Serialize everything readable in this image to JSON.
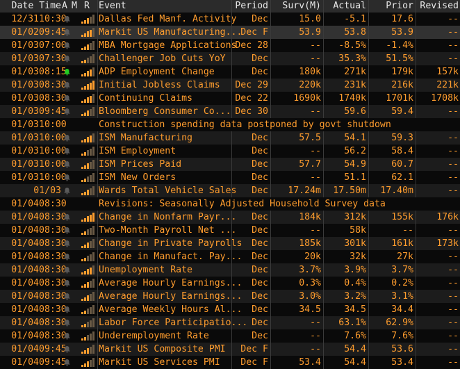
{
  "header": {
    "date_time": "Date Time",
    "a": "A",
    "m": "M",
    "r": "R",
    "event": "Event",
    "period": "Period",
    "surv": "Surv(M)",
    "actual": "Actual",
    "prior": "Prior",
    "revised": "Revised"
  },
  "colors": {
    "text": "#ff9d2e",
    "header_text": "#e8e8e8",
    "bar_on": "#ff9d2e",
    "bar_off": "#6a5a45",
    "bell_normal": "#5a5a5a",
    "bell_active": "#22cc22"
  },
  "rows": [
    {
      "date": "12/31",
      "time": "10:30",
      "bell": "normal",
      "relevance": 3,
      "event": "Dallas Fed Manf. Activity",
      "period": "Dec",
      "surv": "15.0",
      "actual": "-5.1",
      "prior": "17.6",
      "revised": "--"
    },
    {
      "date": "01/02",
      "time": "09:45",
      "bell": "normal",
      "relevance": 4,
      "event": "Markit US Manufacturing...",
      "period": "Dec F",
      "surv": "53.9",
      "actual": "53.8",
      "prior": "53.9",
      "revised": "--"
    },
    {
      "date": "01/03",
      "time": "07:00",
      "bell": "normal",
      "relevance": 3,
      "event": "MBA Mortgage Applications",
      "period": "Dec 28",
      "surv": "--",
      "actual": "-8.5%",
      "prior": "-1.4%",
      "revised": "--"
    },
    {
      "date": "01/03",
      "time": "07:30",
      "bell": "normal",
      "relevance": 2,
      "event": "Challenger Job Cuts YoY",
      "period": "Dec",
      "surv": "--",
      "actual": "35.3%",
      "prior": "51.5%",
      "revised": "--"
    },
    {
      "date": "01/03",
      "time": "08:15",
      "bell": "active",
      "relevance": 4,
      "event": "ADP Employment Change",
      "period": "Dec",
      "surv": "180k",
      "actual": "271k",
      "prior": "179k",
      "revised": "157k"
    },
    {
      "date": "01/03",
      "time": "08:30",
      "bell": "normal",
      "relevance": 5,
      "event": "Initial Jobless Claims",
      "period": "Dec 29",
      "surv": "220k",
      "actual": "231k",
      "prior": "216k",
      "revised": "221k"
    },
    {
      "date": "01/03",
      "time": "08:30",
      "bell": "normal",
      "relevance": 4,
      "event": "Continuing Claims",
      "period": "Dec 22",
      "surv": "1690k",
      "actual": "1740k",
      "prior": "1701k",
      "revised": "1708k"
    },
    {
      "date": "01/03",
      "time": "09:45",
      "bell": "normal",
      "relevance": 3,
      "event": "Bloomberg Consumer Co...",
      "period": "Dec 30",
      "surv": "--",
      "actual": "59.6",
      "prior": "59.4",
      "revised": "--"
    },
    {
      "date": "01/03",
      "time": "10:00",
      "full_note": "Construction spending data postponed by govt shutdown"
    },
    {
      "date": "01/03",
      "time": "10:00",
      "bell": "normal",
      "relevance": 4,
      "event": "ISM Manufacturing",
      "period": "Dec",
      "surv": "57.5",
      "actual": "54.1",
      "prior": "59.3",
      "revised": "--"
    },
    {
      "date": "01/03",
      "time": "10:00",
      "bell": "normal",
      "relevance": 2,
      "event": "ISM Employment",
      "period": "Dec",
      "surv": "--",
      "actual": "56.2",
      "prior": "58.4",
      "revised": "--"
    },
    {
      "date": "01/03",
      "time": "10:00",
      "bell": "normal",
      "relevance": 3,
      "event": "ISM Prices Paid",
      "period": "Dec",
      "surv": "57.7",
      "actual": "54.9",
      "prior": "60.7",
      "revised": "--"
    },
    {
      "date": "01/03",
      "time": "10:00",
      "bell": "normal",
      "relevance": 2,
      "event": "ISM New Orders",
      "period": "Dec",
      "surv": "--",
      "actual": "51.1",
      "prior": "62.1",
      "revised": "--"
    },
    {
      "date": "",
      "time": "01/03",
      "bell": "normal",
      "relevance": 3,
      "event": "Wards Total Vehicle Sales",
      "period": "Dec",
      "surv": "17.24m",
      "actual": "17.50m",
      "prior": "17.40m",
      "revised": "--"
    },
    {
      "date": "01/04",
      "time": "08:30",
      "full_note": "Revisions: Seasonally Adjusted Household Survey data"
    },
    {
      "date": "01/04",
      "time": "08:30",
      "bell": "normal",
      "relevance": 5,
      "event": "Change in Nonfarm Payr...",
      "period": "Dec",
      "surv": "184k",
      "actual": "312k",
      "prior": "155k",
      "revised": "176k"
    },
    {
      "date": "01/04",
      "time": "08:30",
      "bell": "normal",
      "relevance": 2,
      "event": "Two-Month Payroll Net ...",
      "period": "Dec",
      "surv": "--",
      "actual": "58k",
      "prior": "--",
      "revised": "--"
    },
    {
      "date": "01/04",
      "time": "08:30",
      "bell": "normal",
      "relevance": 3,
      "event": "Change in Private Payrolls",
      "period": "Dec",
      "surv": "185k",
      "actual": "301k",
      "prior": "161k",
      "revised": "173k"
    },
    {
      "date": "01/04",
      "time": "08:30",
      "bell": "normal",
      "relevance": 2,
      "event": "Change in Manufact. Pay...",
      "period": "Dec",
      "surv": "20k",
      "actual": "32k",
      "prior": "27k",
      "revised": "--"
    },
    {
      "date": "01/04",
      "time": "08:30",
      "bell": "normal",
      "relevance": 4,
      "event": "Unemployment Rate",
      "period": "Dec",
      "surv": "3.7%",
      "actual": "3.9%",
      "prior": "3.7%",
      "revised": "--"
    },
    {
      "date": "01/04",
      "time": "08:30",
      "bell": "normal",
      "relevance": 3,
      "event": "Average Hourly Earnings...",
      "period": "Dec",
      "surv": "0.3%",
      "actual": "0.4%",
      "prior": "0.2%",
      "revised": "--"
    },
    {
      "date": "01/04",
      "time": "08:30",
      "bell": "normal",
      "relevance": 3,
      "event": "Average Hourly Earnings...",
      "period": "Dec",
      "surv": "3.0%",
      "actual": "3.2%",
      "prior": "3.1%",
      "revised": "--"
    },
    {
      "date": "01/04",
      "time": "08:30",
      "bell": "normal",
      "relevance": 2,
      "event": "Average Weekly Hours Al...",
      "period": "Dec",
      "surv": "34.5",
      "actual": "34.5",
      "prior": "34.4",
      "revised": "--"
    },
    {
      "date": "01/04",
      "time": "08:30",
      "bell": "normal",
      "relevance": 2,
      "event": "Labor Force Participatio...",
      "period": "Dec",
      "surv": "--",
      "actual": "63.1%",
      "prior": "62.9%",
      "revised": "--"
    },
    {
      "date": "01/04",
      "time": "08:30",
      "bell": "normal",
      "relevance": 2,
      "event": "Underemployment Rate",
      "period": "Dec",
      "surv": "--",
      "actual": "7.6%",
      "prior": "7.6%",
      "revised": "--"
    },
    {
      "date": "01/04",
      "time": "09:45",
      "bell": "normal",
      "relevance": 3,
      "event": "Markit US Composite PMI",
      "period": "Dec F",
      "surv": "--",
      "actual": "54.4",
      "prior": "53.6",
      "revised": "--"
    },
    {
      "date": "01/04",
      "time": "09:45",
      "bell": "normal",
      "relevance": 3,
      "event": "Markit US Services PMI",
      "period": "Dec F",
      "surv": "53.4",
      "actual": "54.4",
      "prior": "53.4",
      "revised": "--"
    }
  ]
}
